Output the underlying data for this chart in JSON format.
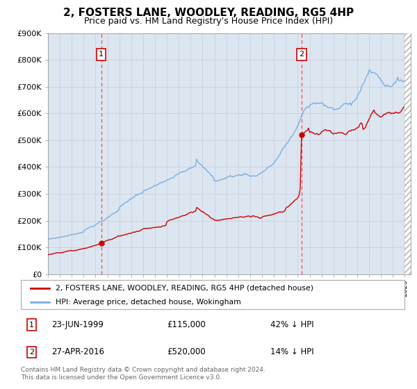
{
  "title": "2, FOSTERS LANE, WOODLEY, READING, RG5 4HP",
  "subtitle": "Price paid vs. HM Land Registry's House Price Index (HPI)",
  "legend_line1": "2, FOSTERS LANE, WOODLEY, READING, RG5 4HP (detached house)",
  "legend_line2": "HPI: Average price, detached house, Wokingham",
  "sale1_date": "23-JUN-1999",
  "sale1_price": 115000,
  "sale1_pct": "42% ↓ HPI",
  "sale2_date": "27-APR-2016",
  "sale2_price": 520000,
  "sale2_pct": "14% ↓ HPI",
  "footnote": "Contains HM Land Registry data © Crown copyright and database right 2024.\nThis data is licensed under the Open Government Licence v3.0.",
  "hpi_color": "#7aade0",
  "price_color": "#cc0000",
  "bg_color": "#dce6f1",
  "marker_color": "#cc0000",
  "vline_color": "#ff4444",
  "ylim": [
    0,
    900000
  ],
  "sale1_year": 1999.47,
  "sale2_year": 2016.32,
  "xmin": 1995.0,
  "xmax": 2025.5
}
